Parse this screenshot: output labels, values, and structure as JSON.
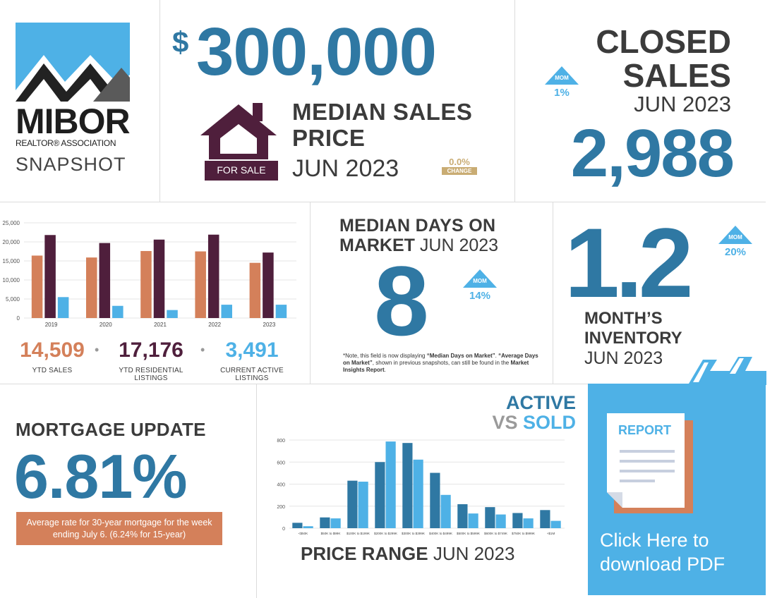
{
  "brand": {
    "name": "MIBOR",
    "subname": "REALTOR® ASSOCIATION",
    "snapshot_label": "SNAPSHOT"
  },
  "median_price": {
    "currency_symbol": "$",
    "value": "300,000",
    "label_line1": "MEDIAN SALES",
    "label_line2": "PRICE",
    "period": "JUN 2023",
    "house_sign": "FOR SALE",
    "change_value": "0.0%",
    "change_label": "CHANGE"
  },
  "closed_sales": {
    "label_line1": "CLOSED",
    "label_line2": "SALES",
    "period": "JUN 2023",
    "value": "2,988",
    "mom_label": "MOM",
    "mom_pct": "1%"
  },
  "days_on_market": {
    "label_line1": "MEDIAN DAYS ON",
    "label_line2_bold": "MARKET",
    "period": "JUN 2023",
    "value": "8",
    "mom_label": "MOM",
    "mom_pct": "14%",
    "note_prefix": "*Note, this field is now displaying ",
    "note_b1": "“Median Days on Market”",
    "note_mid1": ". ",
    "note_b2": "“Average Days on Market”",
    "note_mid2": ", shown in previous snapshots, can still be found in the ",
    "note_b3": "Market Insights Report",
    "note_end": "."
  },
  "inventory": {
    "value": "1.2",
    "label_line1": "MONTH’S",
    "label_line2": "INVENTORY",
    "period": "JUN 2023",
    "mom_label": "MOM",
    "mom_pct": "20%"
  },
  "ytd_stats": [
    {
      "value": "14,509",
      "label": "YTD SALES",
      "color": "#d4805a"
    },
    {
      "value": "17,176",
      "label": "YTD RESIDENTIAL LISTINGS",
      "color": "#4f1f3c"
    },
    {
      "value": "3,491",
      "label": "CURRENT ACTIVE LISTINGS",
      "color": "#4eb1e6"
    }
  ],
  "stat_separator": "•",
  "mortgage": {
    "title": "MORTGAGE UPDATE",
    "rate": "6.81%",
    "note": "Average rate for 30-year mortgage for the week ending July 6. (6.24% for 15-year)"
  },
  "price_range": {
    "title_line1": "ACTIVE",
    "title_vs": "VS",
    "title_sold": "SOLD",
    "footer_bold": "PRICE RANGE",
    "footer_period": "JUN 2023"
  },
  "download": {
    "report_label": "REPORT",
    "cta": "Click Here to download PDF",
    "bg_color": "#4eb1e6"
  },
  "chart_data": [
    {
      "type": "bar",
      "categories": [
        "2019",
        "2020",
        "2021",
        "2022",
        "2023"
      ],
      "series": [
        {
          "values": [
            16400,
            15900,
            17600,
            17500,
            14500
          ],
          "color": "#d4805a"
        },
        {
          "values": [
            21800,
            19700,
            20600,
            21900,
            17200
          ],
          "color": "#4f1f3c"
        },
        {
          "values": [
            5500,
            3200,
            2100,
            3500,
            3500
          ],
          "color": "#4eb1e6"
        }
      ],
      "yticks": [
        "0",
        "5,000",
        "10,000",
        "15,000",
        "20,000",
        "25,000"
      ],
      "ylim": [
        0,
        25000
      ]
    },
    {
      "type": "bar",
      "categories": [
        "<$50K",
        "$50K to $99K",
        "$100K to $199K",
        "$200K to $299K",
        "$300K to $399K",
        "$400K to $499K",
        "$500K to $599K",
        "$600K to $749K",
        "$750K to $999K",
        "+$1M"
      ],
      "series": [
        {
          "values": [
            55,
            110,
            485,
            675,
            870,
            565,
            245,
            215,
            155,
            185
          ],
          "color": "#2f78a3"
        },
        {
          "values": [
            20,
            100,
            475,
            885,
            700,
            340,
            150,
            140,
            100,
            75
          ],
          "color": "#4eb1e6"
        }
      ],
      "yticks": [
        "0",
        "200",
        "400",
        "600",
        "800"
      ],
      "ylim": [
        0,
        900
      ]
    }
  ]
}
